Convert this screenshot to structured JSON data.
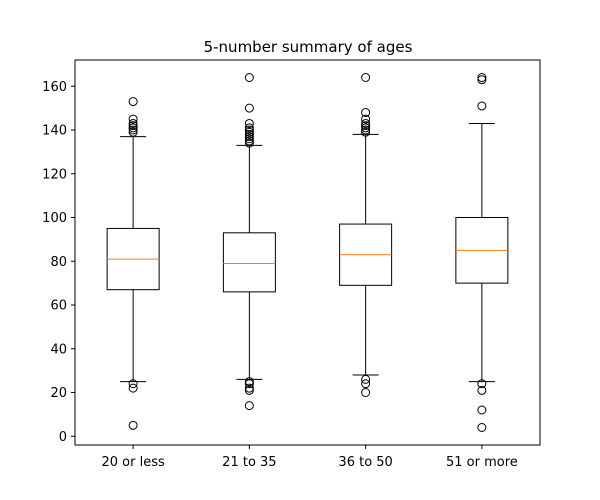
{
  "chart_data": {
    "type": "boxplot",
    "title": "5-number summary of ages",
    "xlabel": "",
    "ylabel": "",
    "ylim": [
      -4,
      172
    ],
    "yticks": [
      0,
      20,
      40,
      60,
      80,
      100,
      120,
      140,
      160
    ],
    "grid": false,
    "categories": [
      "20 or less",
      "21 to 35",
      "36 to 50",
      "51 or more"
    ],
    "boxes": [
      {
        "category": "20 or less",
        "whisker_low": 25,
        "q1": 67,
        "median": 81,
        "q3": 95,
        "whisker_high": 137,
        "outliers": [
          5,
          22,
          24,
          139,
          140,
          141,
          142,
          143,
          145,
          153
        ]
      },
      {
        "category": "21 to 35",
        "whisker_low": 26,
        "q1": 66,
        "median": 79,
        "q3": 93,
        "whisker_high": 133,
        "outliers": [
          14,
          21,
          22,
          24,
          25,
          134,
          135,
          136,
          137,
          138,
          139,
          140,
          141,
          143,
          150,
          164
        ]
      },
      {
        "category": "36 to 50",
        "whisker_low": 28,
        "q1": 69,
        "median": 83,
        "q3": 97,
        "whisker_high": 138,
        "outliers": [
          20,
          24,
          26,
          139,
          140,
          141,
          142,
          143,
          145,
          148,
          164
        ]
      },
      {
        "category": "51 or more",
        "whisker_low": 25,
        "q1": 70,
        "median": 85,
        "q3": 100,
        "whisker_high": 143,
        "outliers": [
          4,
          12,
          21,
          24,
          151,
          163,
          164
        ]
      }
    ],
    "colors": {
      "box": "#000000",
      "median": "#ff7f0e",
      "background": "#ffffff"
    }
  }
}
